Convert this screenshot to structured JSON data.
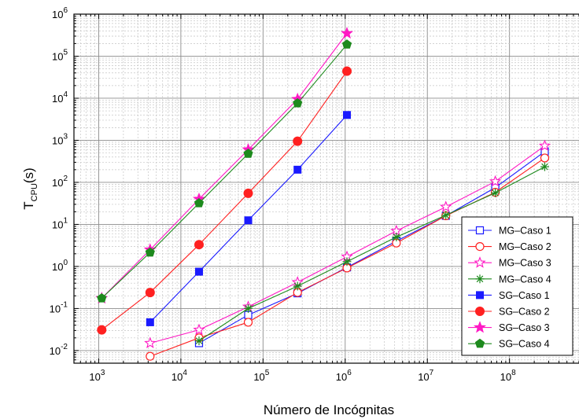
{
  "chart_data": {
    "type": "scatter",
    "title": "",
    "xlabel": "Número de Incógnitas",
    "ylabel": {
      "main": "T",
      "sub": "CPU",
      "suffix": "(s)"
    },
    "xscale": "log",
    "yscale": "log",
    "xlim": [
      500,
      800000000
    ],
    "ylim": [
      0.005,
      1000000
    ],
    "grid": true,
    "legend_position": "right",
    "x_ticks": [
      {
        "value": 1000,
        "base": "10",
        "exp": "3"
      },
      {
        "value": 10000,
        "base": "10",
        "exp": "4"
      },
      {
        "value": 100000,
        "base": "10",
        "exp": "5"
      },
      {
        "value": 1000000,
        "base": "10",
        "exp": "6"
      },
      {
        "value": 10000000,
        "base": "10",
        "exp": "7"
      },
      {
        "value": 100000000,
        "base": "10",
        "exp": "8"
      }
    ],
    "y_ticks": [
      {
        "value": 0.01,
        "base": "10",
        "exp": "-2"
      },
      {
        "value": 0.1,
        "base": "10",
        "exp": "-1"
      },
      {
        "value": 1,
        "base": "10",
        "exp": "0"
      },
      {
        "value": 10,
        "base": "10",
        "exp": "1"
      },
      {
        "value": 100,
        "base": "10",
        "exp": "2"
      },
      {
        "value": 1000,
        "base": "10",
        "exp": "3"
      },
      {
        "value": 10000,
        "base": "10",
        "exp": "4"
      },
      {
        "value": 100000,
        "base": "10",
        "exp": "5"
      },
      {
        "value": 1000000,
        "base": "10",
        "exp": "6"
      }
    ],
    "series": [
      {
        "name": "MG–Caso 1",
        "color": "#1a1aff",
        "marker": "square-open",
        "x": [
          16641,
          66049,
          263169,
          1050625,
          4198401,
          16785409,
          67125249,
          268468225
        ],
        "y": [
          0.015,
          0.07,
          0.23,
          0.95,
          4.0,
          16.0,
          75.0,
          540.0
        ]
      },
      {
        "name": "MG–Caso 2",
        "color": "#ff2020",
        "marker": "circle-open",
        "x": [
          4225,
          16641,
          66049,
          263169,
          1050625,
          4198401,
          16785409,
          67125249,
          268468225
        ],
        "y": [
          0.0073,
          0.02,
          0.047,
          0.24,
          0.92,
          3.6,
          16.0,
          58.0,
          380.0
        ]
      },
      {
        "name": "MG–Caso 3",
        "color": "#ff19c4",
        "marker": "star-open",
        "x": [
          4225,
          16641,
          66049,
          263169,
          1050625,
          4198401,
          16785409,
          67125249,
          268468225
        ],
        "y": [
          0.015,
          0.031,
          0.11,
          0.42,
          1.7,
          7.0,
          26.0,
          105.0,
          740.0
        ]
      },
      {
        "name": "MG–Caso 4",
        "color": "#1d8a1d",
        "marker": "asterisk",
        "x": [
          16641,
          66049,
          263169,
          1050625,
          4198401,
          16785409,
          67125249,
          268468225
        ],
        "y": [
          0.017,
          0.1,
          0.34,
          1.3,
          5.0,
          16.5,
          56.0,
          235.0
        ]
      },
      {
        "name": "SG–Caso 1",
        "color": "#1a1aff",
        "marker": "square",
        "x": [
          4225,
          16641,
          66049,
          263169,
          1050625
        ],
        "y": [
          0.047,
          0.75,
          12.5,
          200.0,
          4000.0
        ]
      },
      {
        "name": "SG–Caso 2",
        "color": "#ff2020",
        "marker": "circle",
        "x": [
          1089,
          4225,
          16641,
          66049,
          263169,
          1050625
        ],
        "y": [
          0.031,
          0.24,
          3.3,
          55.0,
          950.0,
          44000.0
        ]
      },
      {
        "name": "SG–Caso 3",
        "color": "#ff19c4",
        "marker": "star",
        "x": [
          1089,
          4225,
          16641,
          66049,
          263169,
          1050625
        ],
        "y": [
          0.175,
          2.5,
          40.0,
          600.0,
          9500.0,
          350000.0
        ]
      },
      {
        "name": "SG–Caso 4",
        "color": "#1d8a1d",
        "marker": "pentagon",
        "x": [
          1089,
          4225,
          16641,
          66049,
          263169,
          1050625
        ],
        "y": [
          0.175,
          2.15,
          32.0,
          480.0,
          7600.0,
          190000.0
        ]
      }
    ]
  }
}
